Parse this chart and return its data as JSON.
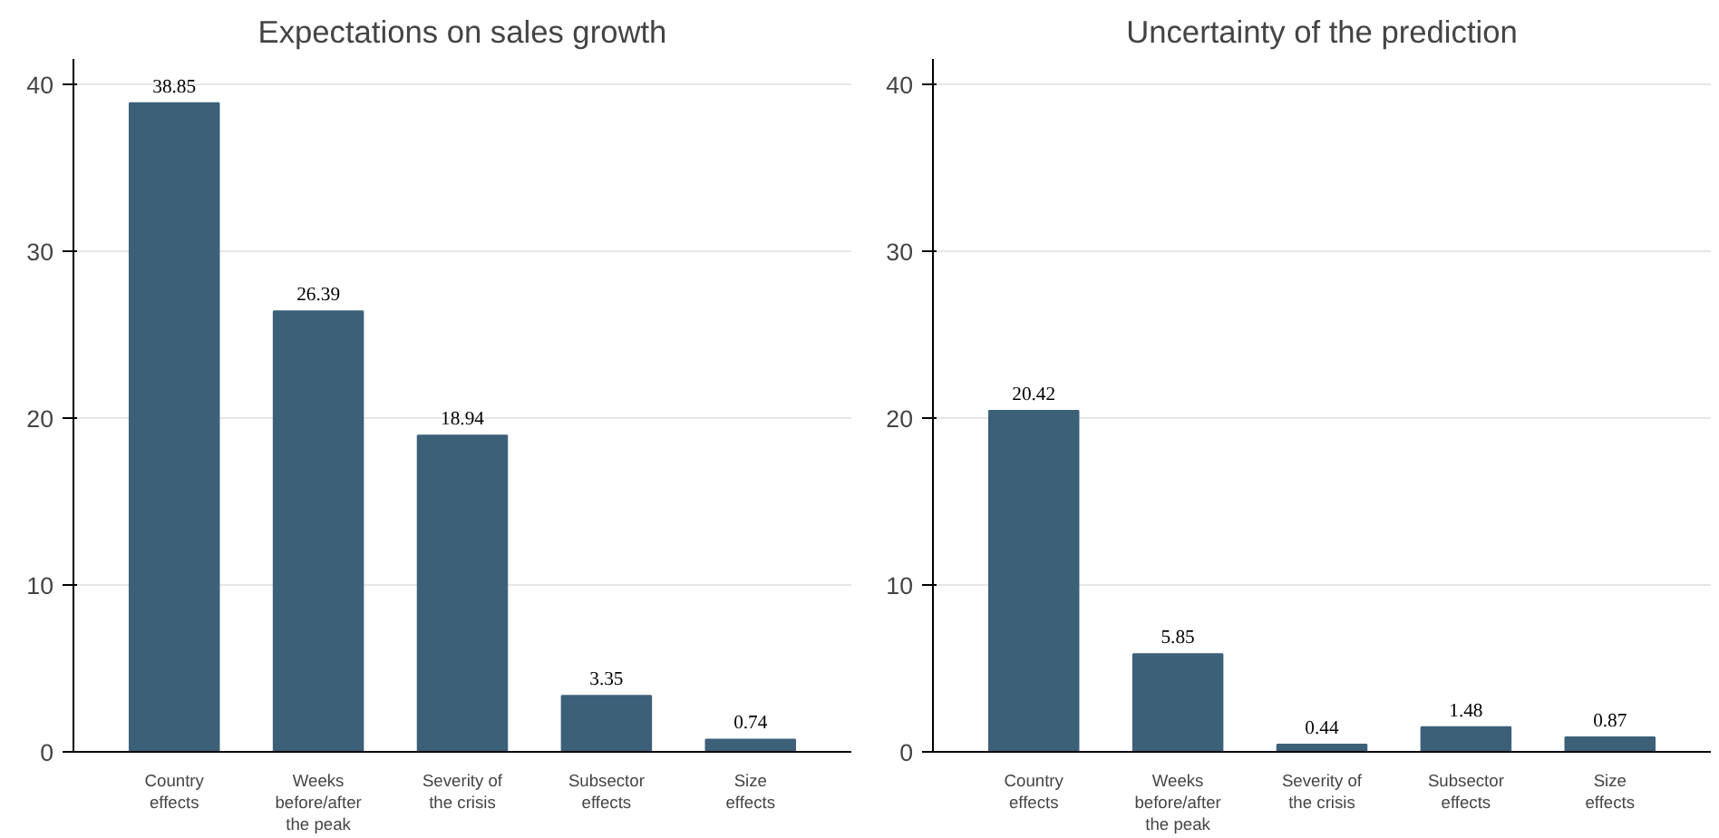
{
  "chart_data": [
    {
      "type": "bar",
      "title": "Expectations on sales growth",
      "categories": [
        "Country\neffects",
        "Weeks\nbefore/after\nthe peak",
        "Severity of\nthe crisis",
        "Subsector\neffects",
        "Size\neffects"
      ],
      "values": [
        38.85,
        26.39,
        18.94,
        3.35,
        0.74
      ],
      "color": "#3d6079",
      "ylim": [
        0,
        41.5
      ],
      "yticks": [
        0,
        10,
        20,
        30,
        40
      ],
      "grid": "y",
      "data_labels": true
    },
    {
      "type": "bar",
      "title": "Uncertainty of the prediction",
      "categories": [
        "Country\neffects",
        "Weeks\nbefore/after\nthe peak",
        "Severity of\nthe crisis",
        "Subsector\neffects",
        "Size\neffects"
      ],
      "values": [
        20.42,
        5.85,
        0.44,
        1.48,
        0.87
      ],
      "color": "#3d6079",
      "ylim": [
        0,
        41.5
      ],
      "yticks": [
        0,
        10,
        20,
        30,
        40
      ],
      "grid": "y",
      "data_labels": true
    }
  ]
}
